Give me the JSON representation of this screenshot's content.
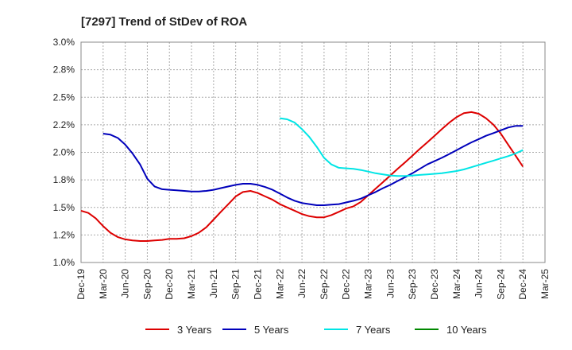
{
  "chart_data": {
    "type": "line",
    "title": "[7297]  Trend of StDev of ROA",
    "xlabel": "",
    "ylabel": "",
    "x_labels": [
      "Dec-19",
      "Mar-20",
      "Jun-20",
      "Sep-20",
      "Dec-20",
      "Mar-21",
      "Jun-21",
      "Sep-21",
      "Dec-21",
      "Mar-22",
      "Jun-22",
      "Sep-22",
      "Dec-22",
      "Mar-23",
      "Jun-23",
      "Sep-23",
      "Dec-23",
      "Mar-24",
      "Jun-24",
      "Sep-24",
      "Dec-24",
      "Mar-25"
    ],
    "y_ticks": [
      "1.0%",
      "1.2%",
      "1.5%",
      "1.8%",
      "2.0%",
      "2.2%",
      "2.5%",
      "2.8%",
      "3.0%"
    ],
    "ylim": [
      1.0,
      3.0
    ],
    "grid": true,
    "legend_position": "bottom",
    "series": [
      {
        "name": "3 Years",
        "color": "#dd0000",
        "points": [
          [
            0,
            1.47
          ],
          [
            0.33,
            1.45
          ],
          [
            0.67,
            1.4
          ],
          [
            1.0,
            1.33
          ],
          [
            1.33,
            1.27
          ],
          [
            1.67,
            1.23
          ],
          [
            2.0,
            1.21
          ],
          [
            2.33,
            1.2
          ],
          [
            2.67,
            1.195
          ],
          [
            3.0,
            1.195
          ],
          [
            3.33,
            1.2
          ],
          [
            3.67,
            1.205
          ],
          [
            4.0,
            1.215
          ],
          [
            4.33,
            1.215
          ],
          [
            4.67,
            1.22
          ],
          [
            5.0,
            1.24
          ],
          [
            5.33,
            1.27
          ],
          [
            5.67,
            1.32
          ],
          [
            6.0,
            1.39
          ],
          [
            6.33,
            1.46
          ],
          [
            6.67,
            1.53
          ],
          [
            7.0,
            1.6
          ],
          [
            7.33,
            1.64
          ],
          [
            7.67,
            1.65
          ],
          [
            8.0,
            1.63
          ],
          [
            8.33,
            1.6
          ],
          [
            8.67,
            1.57
          ],
          [
            9.0,
            1.53
          ],
          [
            9.33,
            1.5
          ],
          [
            9.67,
            1.47
          ],
          [
            10.0,
            1.44
          ],
          [
            10.33,
            1.42
          ],
          [
            10.67,
            1.41
          ],
          [
            11.0,
            1.41
          ],
          [
            11.33,
            1.43
          ],
          [
            11.67,
            1.46
          ],
          [
            12.0,
            1.49
          ],
          [
            12.33,
            1.51
          ],
          [
            12.67,
            1.55
          ],
          [
            13.0,
            1.61
          ],
          [
            13.33,
            1.67
          ],
          [
            13.67,
            1.73
          ],
          [
            14.0,
            1.79
          ],
          [
            14.33,
            1.85
          ],
          [
            14.67,
            1.91
          ],
          [
            15.0,
            1.97
          ],
          [
            15.33,
            2.03
          ],
          [
            15.67,
            2.09
          ],
          [
            16.0,
            2.15
          ],
          [
            16.33,
            2.21
          ],
          [
            16.67,
            2.27
          ],
          [
            17.0,
            2.32
          ],
          [
            17.33,
            2.355
          ],
          [
            17.67,
            2.365
          ],
          [
            18.0,
            2.35
          ],
          [
            18.33,
            2.31
          ],
          [
            18.67,
            2.25
          ],
          [
            19.0,
            2.17
          ],
          [
            19.33,
            2.07
          ],
          [
            19.67,
            1.97
          ],
          [
            20.0,
            1.87
          ]
        ]
      },
      {
        "name": "5 Years",
        "color": "#0000bb",
        "points": [
          [
            1.0,
            2.17
          ],
          [
            1.33,
            2.16
          ],
          [
            1.67,
            2.13
          ],
          [
            2.0,
            2.07
          ],
          [
            2.33,
            1.99
          ],
          [
            2.67,
            1.89
          ],
          [
            3.0,
            1.76
          ],
          [
            3.33,
            1.69
          ],
          [
            3.67,
            1.665
          ],
          [
            4.0,
            1.66
          ],
          [
            4.33,
            1.655
          ],
          [
            4.67,
            1.65
          ],
          [
            5.0,
            1.645
          ],
          [
            5.33,
            1.645
          ],
          [
            5.67,
            1.65
          ],
          [
            6.0,
            1.66
          ],
          [
            6.33,
            1.675
          ],
          [
            6.67,
            1.69
          ],
          [
            7.0,
            1.705
          ],
          [
            7.33,
            1.715
          ],
          [
            7.67,
            1.715
          ],
          [
            8.0,
            1.705
          ],
          [
            8.33,
            1.685
          ],
          [
            8.67,
            1.66
          ],
          [
            9.0,
            1.625
          ],
          [
            9.33,
            1.59
          ],
          [
            9.67,
            1.56
          ],
          [
            10.0,
            1.54
          ],
          [
            10.33,
            1.53
          ],
          [
            10.67,
            1.52
          ],
          [
            11.0,
            1.52
          ],
          [
            11.33,
            1.525
          ],
          [
            11.67,
            1.53
          ],
          [
            12.0,
            1.545
          ],
          [
            12.33,
            1.56
          ],
          [
            12.67,
            1.58
          ],
          [
            13.0,
            1.61
          ],
          [
            13.33,
            1.64
          ],
          [
            13.67,
            1.675
          ],
          [
            14.0,
            1.705
          ],
          [
            14.33,
            1.74
          ],
          [
            14.67,
            1.775
          ],
          [
            15.0,
            1.81
          ],
          [
            15.33,
            1.85
          ],
          [
            15.67,
            1.89
          ],
          [
            16.0,
            1.92
          ],
          [
            16.33,
            1.95
          ],
          [
            16.67,
            1.985
          ],
          [
            17.0,
            2.02
          ],
          [
            17.33,
            2.055
          ],
          [
            17.67,
            2.09
          ],
          [
            18.0,
            2.12
          ],
          [
            18.33,
            2.15
          ],
          [
            18.67,
            2.175
          ],
          [
            19.0,
            2.2
          ],
          [
            19.33,
            2.225
          ],
          [
            19.67,
            2.24
          ],
          [
            20.0,
            2.24
          ]
        ]
      },
      {
        "name": "7 Years",
        "color": "#00e5e5",
        "points": [
          [
            9.0,
            2.31
          ],
          [
            9.33,
            2.3
          ],
          [
            9.67,
            2.27
          ],
          [
            10.0,
            2.21
          ],
          [
            10.33,
            2.14
          ],
          [
            10.67,
            2.05
          ],
          [
            11.0,
            1.95
          ],
          [
            11.33,
            1.89
          ],
          [
            11.67,
            1.86
          ],
          [
            12.0,
            1.855
          ],
          [
            12.33,
            1.85
          ],
          [
            12.67,
            1.84
          ],
          [
            13.0,
            1.825
          ],
          [
            13.33,
            1.81
          ],
          [
            13.67,
            1.8
          ],
          [
            14.0,
            1.79
          ],
          [
            14.33,
            1.785
          ],
          [
            14.67,
            1.785
          ],
          [
            15.0,
            1.79
          ],
          [
            15.33,
            1.795
          ],
          [
            15.67,
            1.8
          ],
          [
            16.0,
            1.805
          ],
          [
            16.33,
            1.81
          ],
          [
            16.67,
            1.82
          ],
          [
            17.0,
            1.83
          ],
          [
            17.33,
            1.845
          ],
          [
            17.67,
            1.865
          ],
          [
            18.0,
            1.885
          ],
          [
            18.33,
            1.905
          ],
          [
            18.67,
            1.925
          ],
          [
            19.0,
            1.945
          ],
          [
            19.33,
            1.965
          ],
          [
            19.67,
            1.99
          ],
          [
            20.0,
            2.02
          ]
        ]
      },
      {
        "name": "10 Years",
        "color": "#008800",
        "points": []
      }
    ]
  }
}
